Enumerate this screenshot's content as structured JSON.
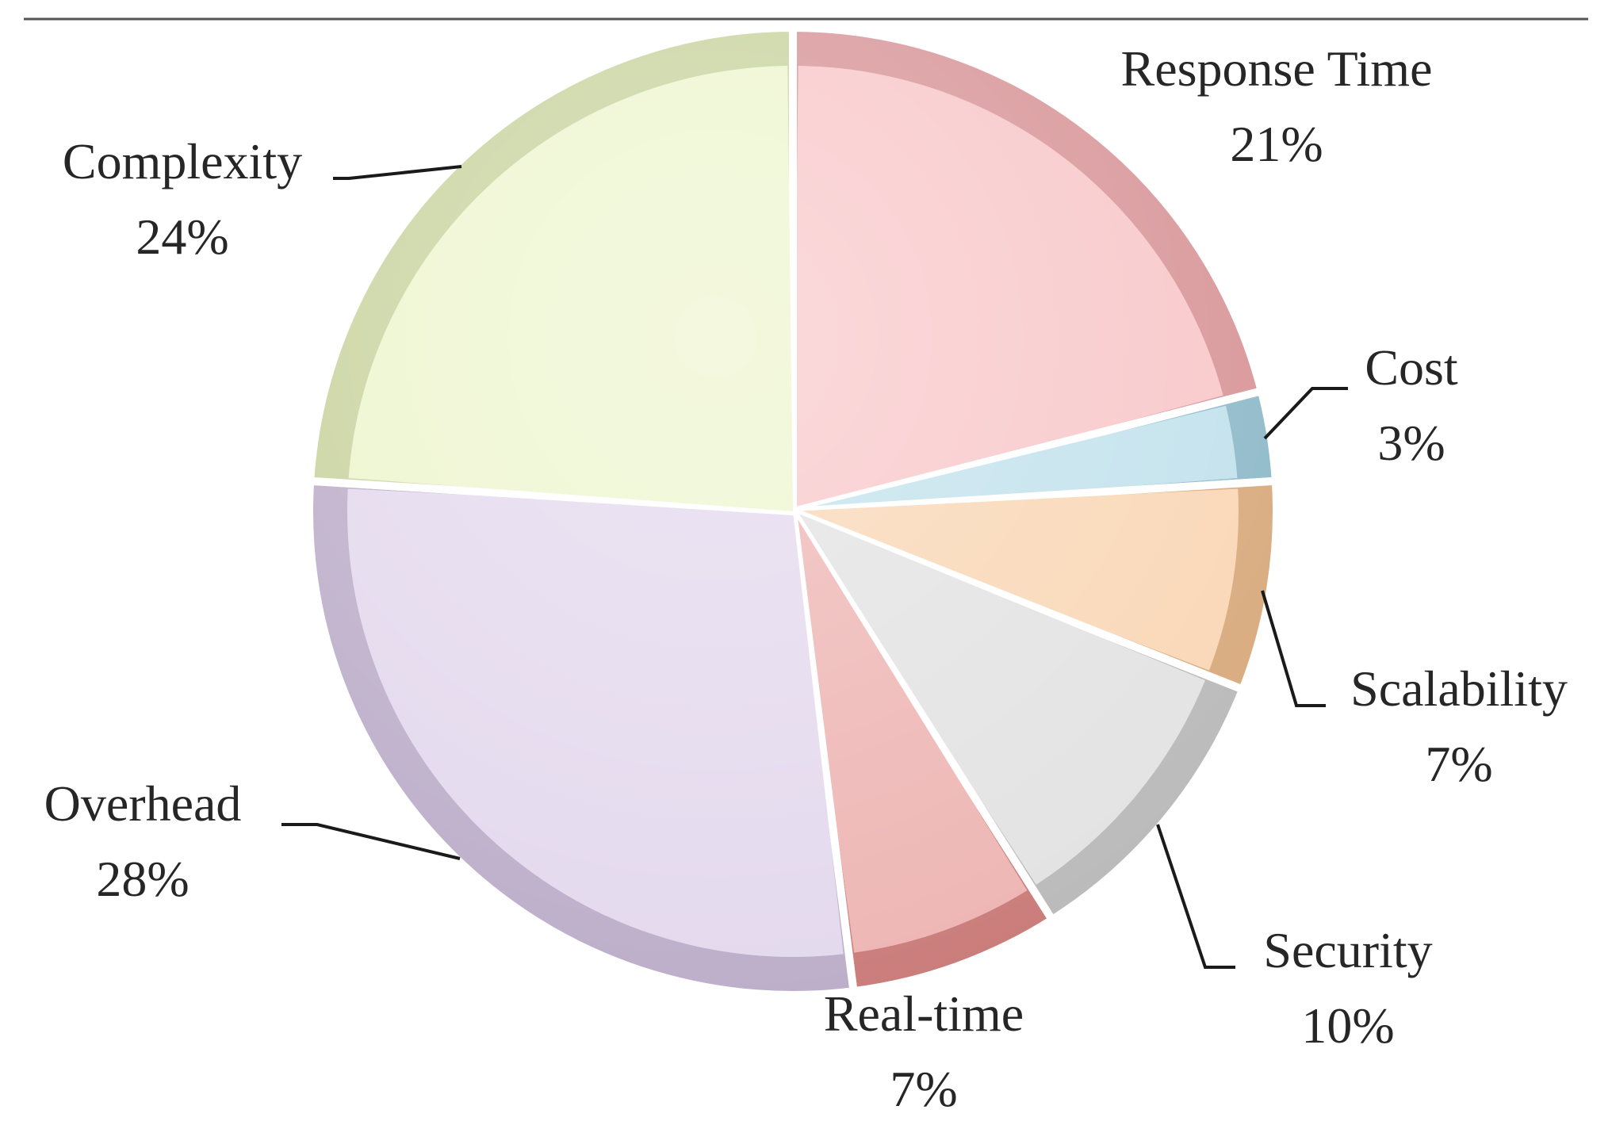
{
  "chart_data": {
    "type": "pie",
    "style": "3d-bevel",
    "legend": "none",
    "slices": [
      {
        "label": "Response Time",
        "value": 21,
        "value_label": "21%",
        "color": "#f4a7ab"
      },
      {
        "label": "Cost",
        "value": 3,
        "value_label": "3%",
        "color": "#9fd1e2"
      },
      {
        "label": "Scalability",
        "value": 7,
        "value_label": "7%",
        "color": "#f6c08c"
      },
      {
        "label": "Security",
        "value": 10,
        "value_label": "10%",
        "color": "#d2d2d2"
      },
      {
        "label": "Real-time",
        "value": 7,
        "value_label": "7%",
        "color": "#e48b88"
      },
      {
        "label": "Overhead",
        "value": 28,
        "value_label": "28%",
        "color": "#d4c3e3"
      },
      {
        "label": "Complexity",
        "value": 24,
        "value_label": "24%",
        "color": "#e3efb2"
      }
    ]
  }
}
